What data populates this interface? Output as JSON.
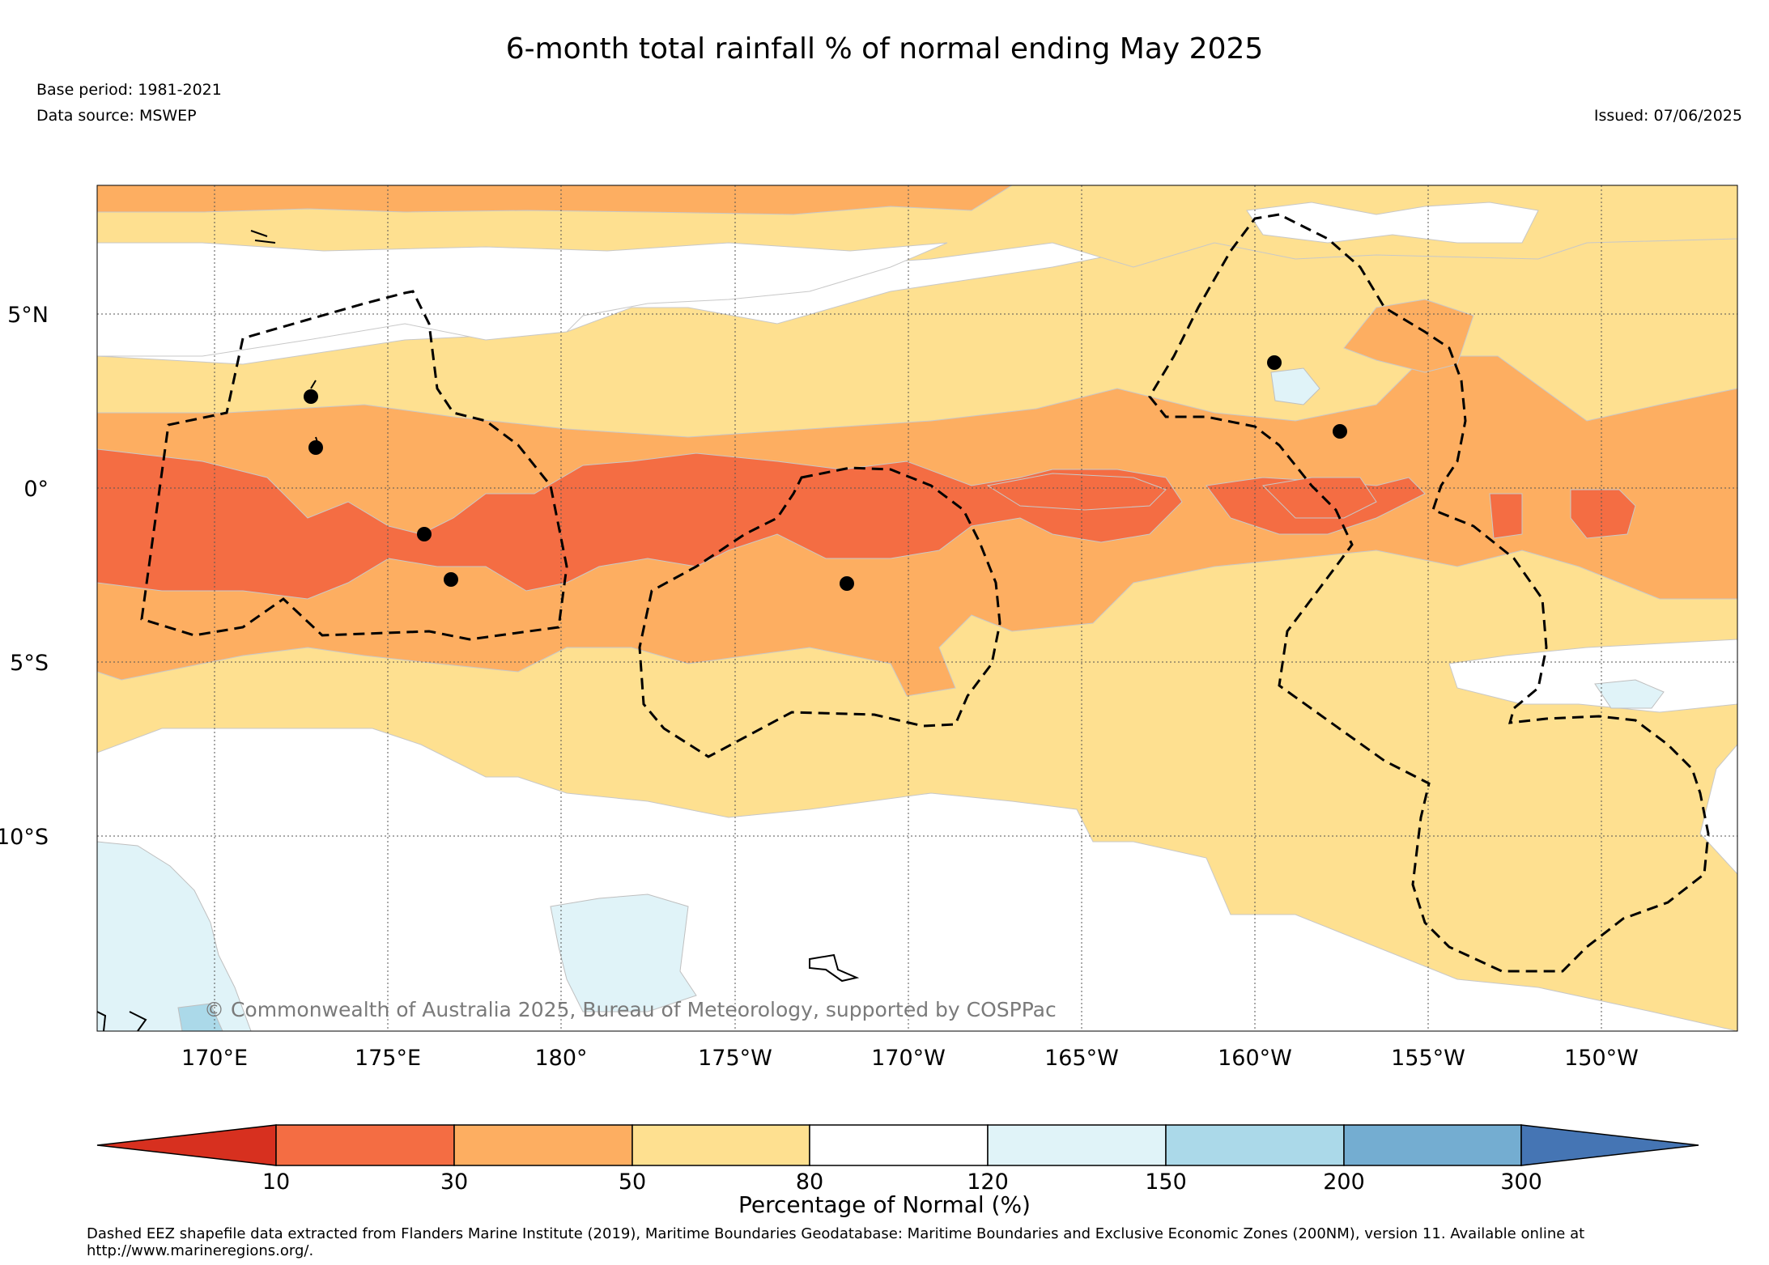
{
  "title": "6-month total rainfall % of normal ending May 2025",
  "meta": {
    "base_period": "Base period: 1981-2021",
    "data_source": "Data source: MSWEP",
    "issued": "Issued: 07/06/2025"
  },
  "map": {
    "lat_labels": [
      "5°N",
      "0°",
      "5°S",
      "10°S"
    ],
    "lon_labels": [
      "170°E",
      "175°E",
      "180°",
      "175°W",
      "170°W",
      "165°W",
      "160°W",
      "155°W",
      "150°W"
    ],
    "credit": "© Commonwealth of Australia 2025, Bureau of Meteorology, supported by COSPPac",
    "colors": {
      "c_lt10": "#d7301f",
      "c_10_30": "#f46d43",
      "c_30_50": "#fdae61",
      "c_50_80": "#fee090",
      "c_80_120": "#ffffff",
      "c_120_150": "#e0f3f8",
      "c_150_200": "#abd9e9",
      "c_200_300": "#74add1",
      "c_gt300": "#4575b4"
    }
  },
  "colorbar": {
    "ticks": [
      "10",
      "30",
      "50",
      "80",
      "120",
      "150",
      "200",
      "300"
    ],
    "title": "Percentage of Normal (%)"
  },
  "footnote": "Dashed EEZ shapefile data extracted from Flanders Marine Institute (2019), Maritime Boundaries Geodatabase: Maritime Boundaries and Exclusive Economic Zones (200NM), version 11. Available online at http://www.marineregions.org/."
}
